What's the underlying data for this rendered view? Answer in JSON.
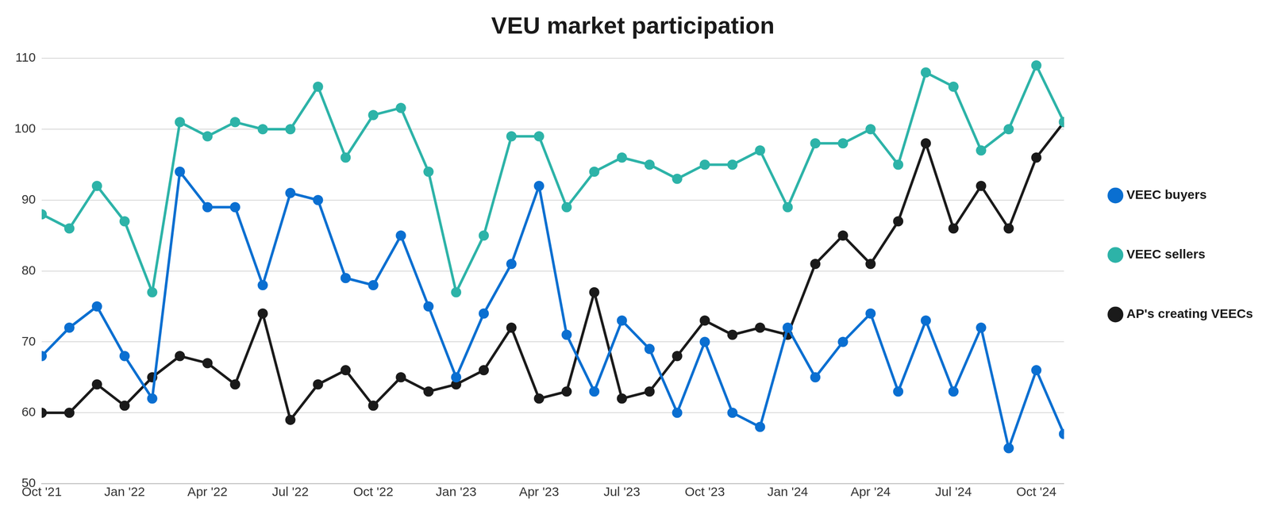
{
  "chart_data": {
    "type": "line",
    "title": "VEU market participation",
    "categories": [
      "Oct '21",
      null,
      null,
      "Jan '22",
      null,
      null,
      "Apr '22",
      null,
      null,
      "Jul '22",
      null,
      null,
      "Oct '22",
      null,
      null,
      "Jan '23",
      null,
      null,
      "Apr '23",
      null,
      null,
      "Jul '23",
      null,
      null,
      "Oct '23",
      null,
      null,
      "Jan '24",
      null,
      null,
      "Apr '24",
      null,
      null,
      "Jul '24",
      null,
      null,
      "Oct '24",
      null
    ],
    "series": [
      {
        "name": "VEEC buyers",
        "color": "#0a6fd1",
        "marker": "circle",
        "values": [
          68,
          72,
          75,
          68,
          62,
          94,
          89,
          89,
          78,
          91,
          90,
          79,
          78,
          85,
          75,
          65,
          74,
          81,
          92,
          71,
          63,
          73,
          69,
          60,
          70,
          60,
          58,
          72,
          65,
          70,
          74,
          63,
          73,
          63,
          72,
          55,
          66,
          57
        ]
      },
      {
        "name": "VEEC sellers",
        "color": "#2db3a8",
        "marker": "circle",
        "values": [
          88,
          86,
          92,
          87,
          77,
          101,
          99,
          101,
          100,
          100,
          106,
          96,
          102,
          103,
          94,
          77,
          85,
          99,
          99,
          89,
          94,
          96,
          95,
          93,
          95,
          95,
          97,
          89,
          98,
          98,
          100,
          95,
          108,
          106,
          97,
          100,
          109,
          101
        ]
      },
      {
        "name": "AP's creating VEECs",
        "color": "#1a1a1a",
        "marker": "circle",
        "values": [
          60,
          60,
          64,
          61,
          65,
          68,
          67,
          64,
          74,
          59,
          64,
          66,
          61,
          65,
          63,
          64,
          66,
          72,
          62,
          63,
          77,
          62,
          63,
          68,
          73,
          71,
          72,
          71,
          81,
          85,
          81,
          87,
          98,
          86,
          92,
          86,
          96,
          101
        ]
      }
    ],
    "ylim": [
      50,
      110
    ],
    "yticks": [
      50,
      60,
      70,
      80,
      90,
      100,
      110
    ],
    "grid": true,
    "legend": "right"
  }
}
